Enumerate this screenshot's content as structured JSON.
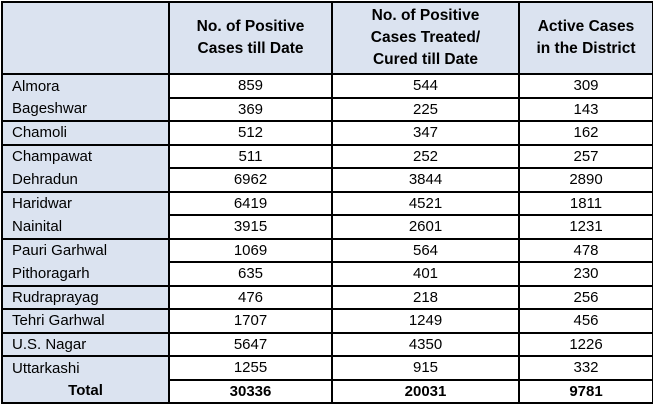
{
  "chart_data": {
    "type": "table",
    "title": "",
    "columns": [
      {
        "label": "",
        "lines": [
          "",
          ""
        ]
      },
      {
        "label": "No. of Positive Cases till Date",
        "lines": [
          "No. of Positive",
          "Cases till Date"
        ]
      },
      {
        "label": "No. of Positive Cases Treated/ Cured till Date",
        "lines": [
          "No. of Positive",
          "Cases Treated/",
          "Cured till Date"
        ]
      },
      {
        "label": "Active Cases in the District",
        "lines": [
          "Active Cases",
          "in the District"
        ]
      }
    ],
    "rows": [
      {
        "district": "Almora",
        "positive": "859",
        "cured": "544",
        "active": "309"
      },
      {
        "district": "Bageshwar",
        "positive": "369",
        "cured": "225",
        "active": "143"
      },
      {
        "district": "Chamoli",
        "positive": "512",
        "cured": "347",
        "active": "162"
      },
      {
        "district": "Champawat",
        "positive": "511",
        "cured": "252",
        "active": "257"
      },
      {
        "district": "Dehradun",
        "positive": "6962",
        "cured": "3844",
        "active": "2890"
      },
      {
        "district": "Haridwar",
        "positive": "6419",
        "cured": "4521",
        "active": "1811"
      },
      {
        "district": "Nainital",
        "positive": "3915",
        "cured": "2601",
        "active": "1231"
      },
      {
        "district": "Pauri Garhwal",
        "positive": "1069",
        "cured": "564",
        "active": "478"
      },
      {
        "district": "Pithoragarh",
        "positive": "635",
        "cured": "401",
        "active": "230"
      },
      {
        "district": "Rudraprayag",
        "positive": "476",
        "cured": "218",
        "active": "256"
      },
      {
        "district": "Tehri Garhwal",
        "positive": "1707",
        "cured": "1249",
        "active": "456"
      },
      {
        "district": "U.S. Nagar",
        "positive": "5647",
        "cured": "4350",
        "active": "1226"
      },
      {
        "district": "Uttarkashi",
        "positive": "1255",
        "cured": "915",
        "active": "332"
      }
    ],
    "total": {
      "label": "Total",
      "positive": "30336",
      "cured": "20031",
      "active": "9781"
    }
  },
  "colors": {
    "header_bg": "#dbe3f0",
    "cell_bg": "#ffffff",
    "border": "#000000",
    "text": "#000000"
  }
}
